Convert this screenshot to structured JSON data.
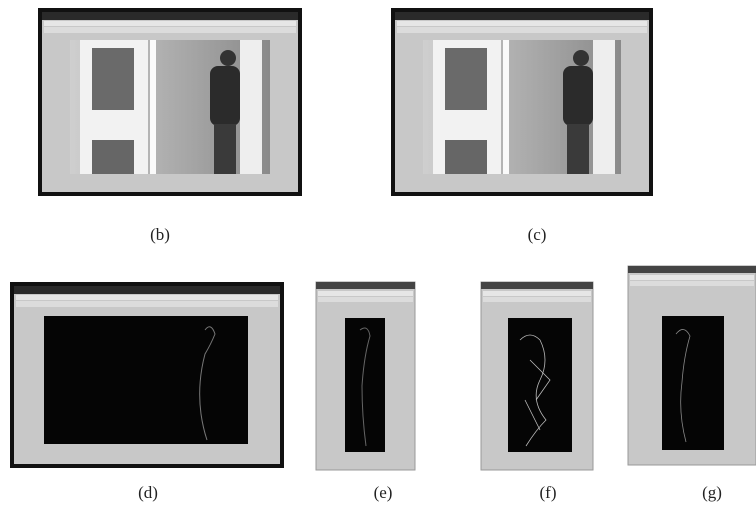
{
  "captions": [
    "(b)",
    "(c)",
    "(d)",
    "(e)",
    "(f)",
    "(g)"
  ]
}
